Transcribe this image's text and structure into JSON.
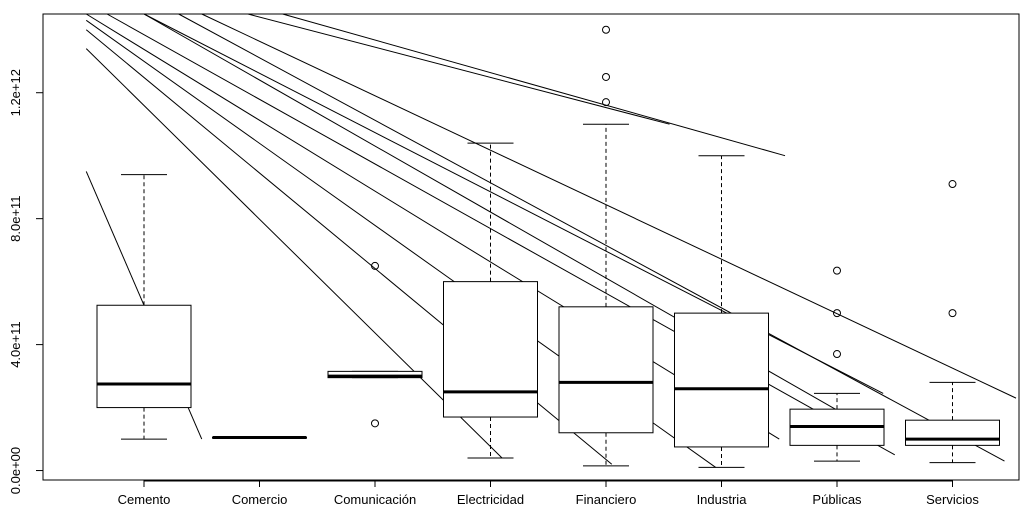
{
  "chart_data": {
    "type": "boxplot",
    "categories": [
      "Cemento",
      "Comercio",
      "Comunicación",
      "Electricidad",
      "Financiero",
      "Industria",
      "Públicas",
      "Servicios"
    ],
    "boxes": [
      {
        "category": "Cemento",
        "lower_whisker": 100000000000.0,
        "q1": 200000000000.0,
        "median": 275000000000.0,
        "q3": 525000000000.0,
        "upper_whisker": 940000000000.0,
        "outliers": []
      },
      {
        "category": "Comercio",
        "lower_whisker": 105000000000.0,
        "q1": 105000000000.0,
        "median": 105000000000.0,
        "q3": 105000000000.0,
        "upper_whisker": 105000000000.0,
        "outliers": []
      },
      {
        "category": "Comunicación",
        "lower_whisker": 295000000000.0,
        "q1": 295000000000.0,
        "median": 300000000000.0,
        "q3": 315000000000.0,
        "upper_whisker": 315000000000.0,
        "outliers": [
          650000000000.0,
          150000000000.0
        ]
      },
      {
        "category": "Electricidad",
        "lower_whisker": 40000000000.0,
        "q1": 170000000000.0,
        "median": 250000000000.0,
        "q3": 600000000000.0,
        "upper_whisker": 1040000000000.0,
        "outliers": []
      },
      {
        "category": "Financiero",
        "lower_whisker": 15000000000.0,
        "q1": 120000000000.0,
        "median": 280000000000.0,
        "q3": 520000000000.0,
        "upper_whisker": 1100000000000.0,
        "outliers": [
          1400000000000.0,
          1250000000000.0,
          1170000000000.0
        ]
      },
      {
        "category": "Industria",
        "lower_whisker": 10000000000.0,
        "q1": 75000000000.0,
        "median": 260000000000.0,
        "q3": 500000000000.0,
        "upper_whisker": 1000000000000.0,
        "outliers": []
      },
      {
        "category": "Públicas",
        "lower_whisker": 30000000000.0,
        "q1": 80000000000.0,
        "median": 140000000000.0,
        "q3": 195000000000.0,
        "upper_whisker": 245000000000.0,
        "outliers": [
          635000000000.0,
          500000000000.0,
          370000000000.0
        ]
      },
      {
        "category": "Servicios",
        "lower_whisker": 25000000000.0,
        "q1": 80000000000.0,
        "median": 100000000000.0,
        "q3": 160000000000.0,
        "upper_whisker": 280000000000.0,
        "outliers": [
          910000000000.0,
          500000000000.0
        ]
      }
    ],
    "y_ticks": [
      0,
      400000000000.0,
      800000000000.0,
      1200000000000.0
    ],
    "y_tick_labels": [
      "0.0e+00",
      "4.0e+11",
      "8.0e+11",
      "1.2e+12"
    ],
    "ylim": [
      -30000000000.0,
      1450000000000.0
    ],
    "overlay_lines": [
      {
        "from": [
          0.5,
          950000000000.0
        ],
        "to": [
          1.5,
          100000000000.0
        ]
      },
      {
        "from": [
          0.5,
          1340000000000.0
        ],
        "to": [
          4.1,
          40000000000.0
        ]
      },
      {
        "from": [
          0.5,
          1400000000000.0
        ],
        "to": [
          5.05,
          20000000000.0
        ]
      },
      {
        "from": [
          0.5,
          1430000000000.0
        ],
        "to": [
          5.95,
          10000000000.0
        ]
      },
      {
        "from": [
          0.5,
          1450000000000.0
        ],
        "to": [
          6.5,
          100000000000.0
        ]
      },
      {
        "from": [
          0.68,
          1450000000000.0
        ],
        "to": [
          7.5,
          50000000000.0
        ]
      },
      {
        "from": [
          1.0,
          1450000000000.0
        ],
        "to": [
          7.2,
          150000000000.0
        ]
      },
      {
        "from": [
          1.0,
          1450000000000.0
        ],
        "to": [
          7.4,
          245000000000.0
        ]
      },
      {
        "from": [
          1.3,
          1450000000000.0
        ],
        "to": [
          8.45,
          30000000000.0
        ]
      },
      {
        "from": [
          1.5,
          1450000000000.0
        ],
        "to": [
          8.55,
          230000000000.0
        ]
      },
      {
        "from": [
          1.9,
          1450000000000.0
        ],
        "to": [
          5.55,
          1100000000000.0
        ]
      },
      {
        "from": [
          2.2,
          1450000000000.0
        ],
        "to": [
          6.55,
          1000000000000.0
        ]
      }
    ],
    "title": "",
    "xlabel": "",
    "ylabel": "",
    "grid": false
  }
}
